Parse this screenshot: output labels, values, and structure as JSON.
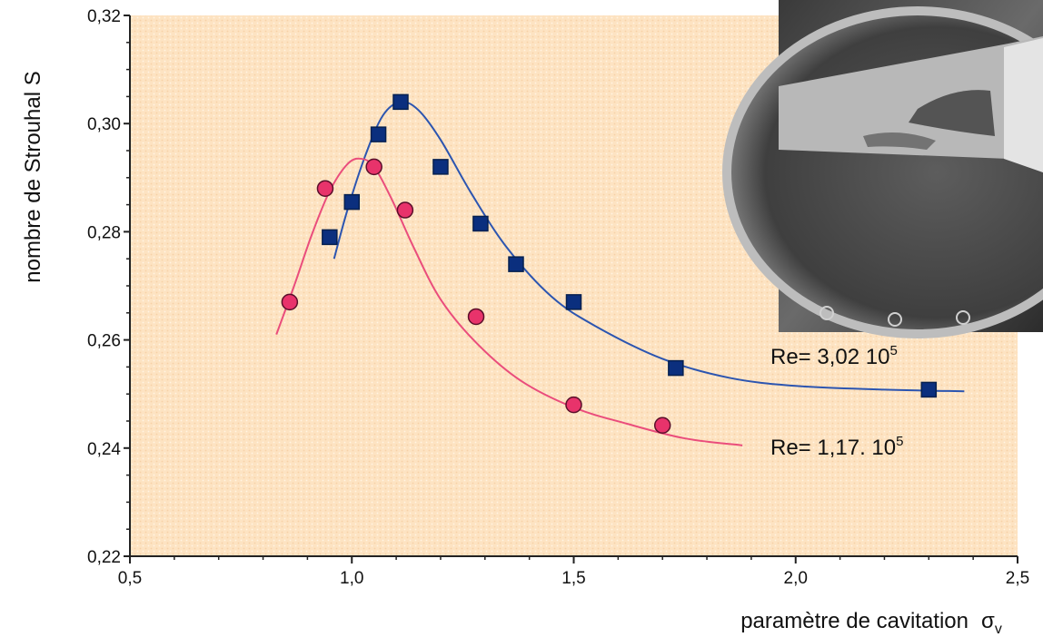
{
  "chart_data": {
    "type": "scatter",
    "title": "",
    "xlabel": "paramètre de cavitation",
    "xlabel_symbol": "σ",
    "xlabel_subscript": "v",
    "ylabel": "nombre de Strouhal  S",
    "xlim": [
      0.5,
      2.5
    ],
    "ylim": [
      0.22,
      0.32
    ],
    "xticks": [
      "0,5",
      "1,0",
      "1,5",
      "2,0",
      "2,5"
    ],
    "yticks": [
      "0,22",
      "0,24",
      "0,26",
      "0,28",
      "0,30",
      "0,32"
    ],
    "grid": false,
    "colors": {
      "background": "#fde3c2",
      "blue": "#0b2f7e",
      "pink": "#e8336b",
      "blue_line": "#2c55b0",
      "pink_line": "#ea4d7c"
    },
    "series": [
      {
        "label_text": "Re= 3,02 10",
        "label_sup": "5",
        "marker": "square",
        "color": "#0b2f7e",
        "points": [
          [
            0.95,
            0.279
          ],
          [
            1.0,
            0.2855
          ],
          [
            1.06,
            0.298
          ],
          [
            1.11,
            0.304
          ],
          [
            1.2,
            0.292
          ],
          [
            1.29,
            0.2815
          ],
          [
            1.37,
            0.274
          ],
          [
            1.5,
            0.267
          ],
          [
            1.73,
            0.2548
          ],
          [
            2.3,
            0.2508
          ]
        ],
        "fit": [
          [
            0.96,
            0.275
          ],
          [
            0.99,
            0.284
          ],
          [
            1.03,
            0.294
          ],
          [
            1.07,
            0.3015
          ],
          [
            1.11,
            0.304
          ],
          [
            1.15,
            0.3025
          ],
          [
            1.2,
            0.297
          ],
          [
            1.27,
            0.287
          ],
          [
            1.35,
            0.277
          ],
          [
            1.45,
            0.268
          ],
          [
            1.55,
            0.2625
          ],
          [
            1.7,
            0.2565
          ],
          [
            1.85,
            0.253
          ],
          [
            2.0,
            0.2515
          ],
          [
            2.2,
            0.2508
          ],
          [
            2.38,
            0.2505
          ]
        ]
      },
      {
        "label_text": "Re= 1,17. 10",
        "label_sup": "5",
        "marker": "circle",
        "color": "#e8336b",
        "points": [
          [
            0.86,
            0.267
          ],
          [
            0.94,
            0.288
          ],
          [
            1.05,
            0.292
          ],
          [
            1.12,
            0.284
          ],
          [
            1.28,
            0.2643
          ],
          [
            1.5,
            0.248
          ],
          [
            1.7,
            0.2442
          ]
        ],
        "fit": [
          [
            0.83,
            0.261
          ],
          [
            0.87,
            0.27
          ],
          [
            0.91,
            0.2795
          ],
          [
            0.95,
            0.2875
          ],
          [
            0.99,
            0.2925
          ],
          [
            1.02,
            0.2935
          ],
          [
            1.05,
            0.292
          ],
          [
            1.09,
            0.286
          ],
          [
            1.14,
            0.277
          ],
          [
            1.2,
            0.2675
          ],
          [
            1.28,
            0.2595
          ],
          [
            1.38,
            0.2525
          ],
          [
            1.5,
            0.2475
          ],
          [
            1.62,
            0.2445
          ],
          [
            1.75,
            0.2418
          ],
          [
            1.88,
            0.2405
          ]
        ]
      }
    ],
    "inset_photo": "cavitation-hydrofoil-photo"
  }
}
